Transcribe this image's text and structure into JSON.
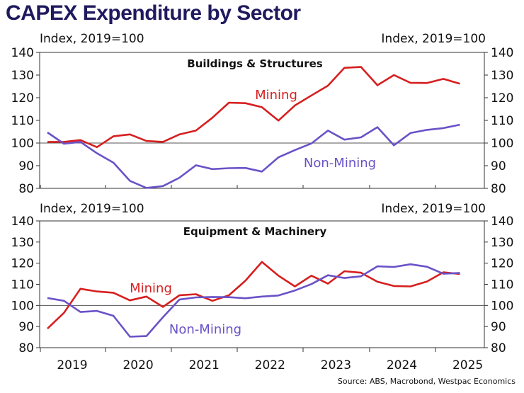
{
  "title": "CAPEX Expenditure by Sector",
  "source": "Source: ABS, Macrobond, Westpac Economics",
  "colors": {
    "mining": "#d61f1f",
    "non_mining": "#6a52c7",
    "title": "#1f1a5e"
  },
  "chart_data": [
    {
      "type": "line",
      "title": "Buildings & Structures",
      "ylabel_left": "Index, 2019=100",
      "ylabel_right": "Index, 2019=100",
      "ylim": [
        80,
        140
      ],
      "yticks": [
        80,
        90,
        100,
        110,
        120,
        130,
        140
      ],
      "xticks": [
        "2019",
        "2020",
        "2021",
        "2022",
        "2023",
        "2024",
        "2025"
      ],
      "reference_line": 100,
      "x": [
        "2018-09",
        "2018-12",
        "2019-03",
        "2019-06",
        "2019-09",
        "2019-12",
        "2020-03",
        "2020-06",
        "2020-09",
        "2020-12",
        "2021-03",
        "2021-06",
        "2021-09",
        "2021-12",
        "2022-03",
        "2022-06",
        "2022-09",
        "2022-12",
        "2023-03",
        "2023-06",
        "2023-09",
        "2023-12",
        "2024-03",
        "2024-06",
        "2024-09",
        "2024-12",
        "2025-03"
      ],
      "series": [
        {
          "name": "Mining",
          "values": [
            100.5,
            100.5,
            101.3,
            98.2,
            103.0,
            103.8,
            100.9,
            100.5,
            103.8,
            105.5,
            111.2,
            117.8,
            117.6,
            115.8,
            109.9,
            116.6,
            121.0,
            125.3,
            133.2,
            133.6,
            125.5,
            130.0,
            126.6,
            126.5,
            128.3,
            126.2,
            null
          ]
        },
        {
          "name": "Non-Mining",
          "values": [
            104.7,
            99.7,
            100.5,
            95.5,
            91.3,
            83.3,
            80.2,
            81.0,
            84.7,
            90.2,
            88.5,
            88.9,
            89.0,
            87.4,
            93.7,
            96.9,
            99.8,
            105.5,
            101.5,
            102.5,
            107.0,
            99.0,
            104.4,
            105.8,
            106.6,
            108.1,
            null
          ]
        }
      ],
      "labels": [
        "Mining",
        "Non-Mining"
      ]
    },
    {
      "type": "line",
      "title": "Equipment & Machinery",
      "ylabel_left": "Index, 2019=100",
      "ylabel_right": "Index, 2019=100",
      "ylim": [
        80,
        140
      ],
      "yticks": [
        80,
        90,
        100,
        110,
        120,
        130,
        140
      ],
      "xticks": [
        "2019",
        "2020",
        "2021",
        "2022",
        "2023",
        "2024",
        "2025"
      ],
      "reference_line": 100,
      "x": [
        "2018-09",
        "2018-12",
        "2019-03",
        "2019-06",
        "2019-09",
        "2019-12",
        "2020-03",
        "2020-06",
        "2020-09",
        "2020-12",
        "2021-03",
        "2021-06",
        "2021-09",
        "2021-12",
        "2022-03",
        "2022-06",
        "2022-09",
        "2022-12",
        "2023-03",
        "2023-06",
        "2023-09",
        "2023-12",
        "2024-03",
        "2024-06",
        "2024-09",
        "2024-12",
        "2025-03"
      ],
      "series": [
        {
          "name": "Mining",
          "values": [
            89.0,
            96.5,
            107.9,
            106.6,
            106.0,
            102.4,
            104.2,
            99.3,
            104.8,
            105.3,
            102.2,
            104.8,
            111.7,
            120.6,
            114.1,
            109.0,
            114.1,
            110.3,
            116.2,
            115.5,
            111.2,
            109.2,
            109.0,
            111.3,
            115.7,
            114.9,
            null
          ]
        },
        {
          "name": "Non-Mining",
          "values": [
            103.5,
            102.2,
            96.9,
            97.4,
            95.1,
            85.2,
            85.5,
            94.4,
            102.8,
            103.8,
            104.0,
            103.9,
            103.4,
            104.2,
            104.7,
            107.1,
            110.1,
            114.3,
            113.0,
            113.8,
            118.5,
            118.2,
            119.5,
            118.3,
            115.0,
            115.4,
            null
          ]
        }
      ],
      "labels": [
        "Mining",
        "Non-Mining"
      ]
    }
  ]
}
